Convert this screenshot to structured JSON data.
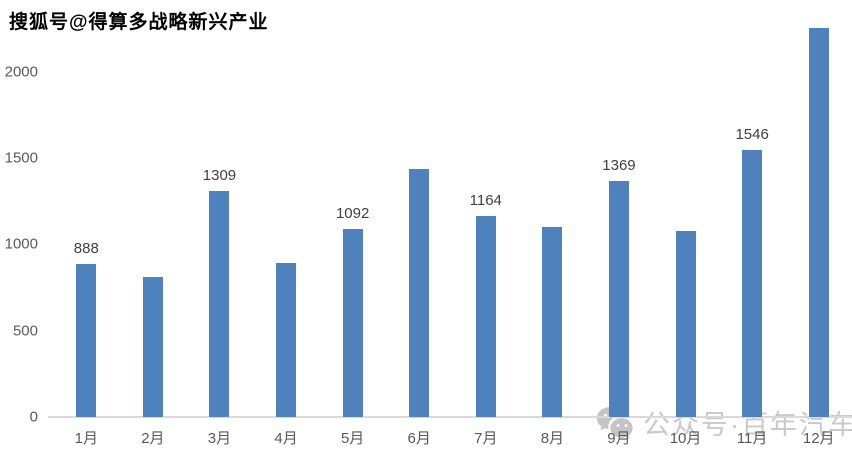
{
  "watermarks": {
    "top_left": "搜狐号@得算多战略新兴产业",
    "bottom_right": "公众号·百年汽车",
    "bottom_right_icon": "wechat-icon"
  },
  "chart_data": {
    "type": "bar",
    "title": "",
    "xlabel": "",
    "ylabel": "",
    "categories": [
      "1月",
      "2月",
      "3月",
      "4月",
      "5月",
      "6月",
      "7月",
      "8月",
      "9月",
      "10月",
      "11月",
      "12月"
    ],
    "values": [
      888,
      812,
      1309,
      893,
      1092,
      1437,
      1164,
      1101,
      1369,
      1078,
      1546,
      2254
    ],
    "data_labels": [
      888,
      null,
      1309,
      null,
      1092,
      null,
      1164,
      null,
      1369,
      null,
      1546,
      null
    ],
    "yticks": [
      0,
      500,
      1000,
      1500,
      2000
    ],
    "ylim": [
      0,
      2417
    ],
    "grid": false,
    "legend": false,
    "colors": {
      "bar": "#4F81BD",
      "value_label": "#404040",
      "y_tick_label": "#595959",
      "x_tick_label": "#595959",
      "axis_line": "#D9D9D9",
      "watermark_bottom": "#C9C9C9",
      "watermark_top": "#000000",
      "background": "#FFFFFF"
    }
  }
}
